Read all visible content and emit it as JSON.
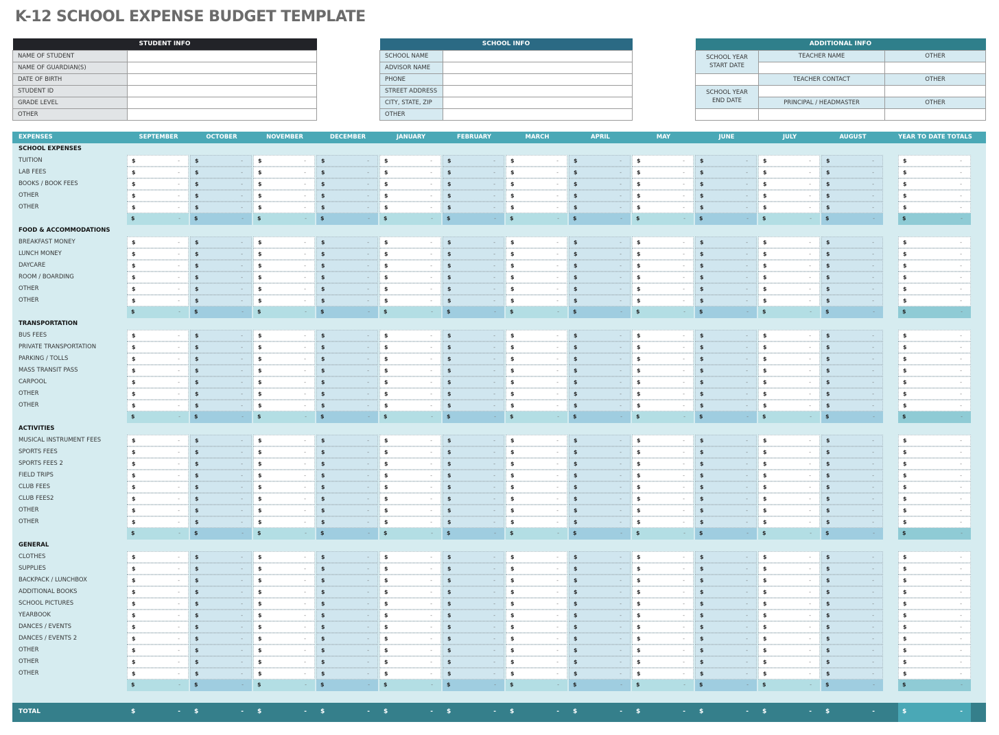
{
  "title": "K-12 SCHOOL EXPENSE BUDGET TEMPLATE",
  "student_info": {
    "header": "STUDENT INFO",
    "fields": [
      "NAME OF STUDENT",
      "NAME OF GUARDIAN(S)",
      "DATE OF BIRTH",
      "STUDENT ID",
      "GRADE LEVEL",
      "OTHER"
    ]
  },
  "school_info": {
    "header": "SCHOOL INFO",
    "fields": [
      "SCHOOL NAME",
      "ADVISOR NAME",
      "PHONE",
      "STREET ADDRESS",
      "CITY, STATE, ZIP",
      "OTHER"
    ]
  },
  "additional_info": {
    "header": "ADDITIONAL INFO",
    "start_date": "SCHOOL YEAR START DATE",
    "end_date": "SCHOOL YEAR END DATE",
    "teacher_name": "TEACHER NAME",
    "teacher_contact": "TEACHER CONTACT",
    "principal": "PRINCIPAL / HEADMASTER",
    "other": "OTHER"
  },
  "budget": {
    "header_label": "EXPENSES",
    "months": [
      "SEPTEMBER",
      "OCTOBER",
      "NOVEMBER",
      "DECEMBER",
      "JANUARY",
      "FEBRUARY",
      "MARCH",
      "APRIL",
      "MAY",
      "JUNE",
      "JULY",
      "AUGUST"
    ],
    "ytd_label": "YEAR TO DATE TOTALS",
    "currency": "$",
    "empty_value": "-",
    "sections": [
      {
        "name": "SCHOOL EXPENSES",
        "items": [
          "TUITION",
          "LAB FEES",
          "BOOKS / BOOK FEES",
          "OTHER",
          "OTHER"
        ]
      },
      {
        "name": "FOOD & ACCOMMODATIONS",
        "items": [
          "BREAKFAST MONEY",
          "LUNCH MONEY",
          "DAYCARE",
          "ROOM / BOARDING",
          "OTHER",
          "OTHER"
        ]
      },
      {
        "name": "TRANSPORTATION",
        "items": [
          "BUS FEES",
          "PRIVATE TRANSPORTATION",
          "PARKING / TOLLS",
          "MASS TRANSIT PASS",
          "CARPOOL",
          "OTHER",
          "OTHER"
        ]
      },
      {
        "name": "ACTIVITIES",
        "items": [
          "MUSICAL INSTRUMENT FEES",
          "SPORTS FEES",
          "SPORTS FEES 2",
          "FIELD TRIPS",
          "CLUB FEES",
          "CLUB FEES2",
          "OTHER",
          "OTHER"
        ]
      },
      {
        "name": "GENERAL",
        "items": [
          "CLOTHES",
          "SUPPLIES",
          "BACKPACK / LUNCHBOX",
          "ADDITIONAL BOOKS",
          "SCHOOL PICTURES",
          "YEARBOOK",
          "DANCES / EVENTS",
          "DANCES / EVENTS 2",
          "OTHER",
          "OTHER",
          "OTHER"
        ]
      }
    ],
    "total_label": "TOTAL"
  },
  "colors": {
    "header": "#4aa8b6",
    "total_bar": "#357f8b",
    "body": "#d6ecf0"
  }
}
